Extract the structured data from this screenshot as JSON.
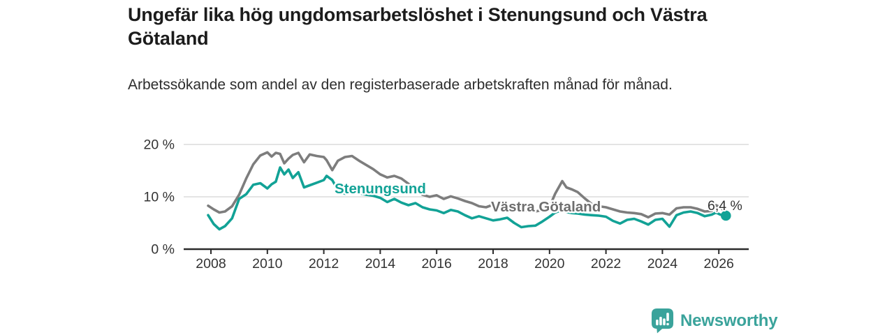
{
  "header": {
    "title": "Ungefär lika hög ungdomsarbetslöshet i Stenungsund och Västra Götaland",
    "subtitle": "Arbetssökande som andel av den registerbaserade arbetskraften månad för månad."
  },
  "chart_data": {
    "type": "line",
    "title": "Ungefär lika hög ungdomsarbetslöshet i Stenungsund och Västra Götaland",
    "subtitle": "Arbetssökande som andel av den registerbaserade arbetskraften månad för månad.",
    "unit": "%",
    "grid": "horizontal",
    "legend": "inline-labels",
    "ylim": [
      0,
      21
    ],
    "y_ticks": [
      {
        "value": 0,
        "label": "0 %"
      },
      {
        "value": 10,
        "label": "10 %"
      },
      {
        "value": 20,
        "label": "20 %"
      }
    ],
    "x_ticks": [
      "2008",
      "2010",
      "2012",
      "2014",
      "2016",
      "2018",
      "2020",
      "2022",
      "2024",
      "2026"
    ],
    "x": [
      2007.9,
      2008.1,
      2008.3,
      2008.5,
      2008.75,
      2009.0,
      2009.25,
      2009.5,
      2009.75,
      2010.0,
      2010.15,
      2010.3,
      2010.45,
      2010.6,
      2010.75,
      2010.9,
      2011.1,
      2011.3,
      2011.5,
      2011.75,
      2012.0,
      2012.1,
      2012.3,
      2012.5,
      2012.75,
      2013.0,
      2013.25,
      2013.5,
      2013.75,
      2014.0,
      2014.25,
      2014.5,
      2014.75,
      2015.0,
      2015.25,
      2015.5,
      2015.75,
      2016.0,
      2016.25,
      2016.5,
      2016.75,
      2017.0,
      2017.25,
      2017.5,
      2017.75,
      2018.0,
      2018.25,
      2018.5,
      2018.75,
      2019.0,
      2019.25,
      2019.5,
      2019.75,
      2020.0,
      2020.2,
      2020.45,
      2020.6,
      2020.8,
      2021.0,
      2021.25,
      2021.5,
      2021.75,
      2022.0,
      2022.25,
      2022.5,
      2022.75,
      2023.0,
      2023.25,
      2023.5,
      2023.75,
      2024.0,
      2024.25,
      2024.5,
      2024.75,
      2025.0,
      2025.25,
      2025.5,
      2025.75,
      2025.9,
      2026.05,
      2026.25
    ],
    "series": [
      {
        "id": "vastra-gotaland",
        "name": "Västra Götaland",
        "color": "#7d7d7d",
        "label_color": "#6e6e6e",
        "values": [
          8.3,
          7.6,
          7.0,
          7.2,
          8.2,
          10.4,
          13.5,
          16.2,
          17.9,
          18.5,
          17.7,
          18.4,
          18.2,
          16.4,
          17.3,
          18.0,
          18.4,
          16.6,
          18.1,
          17.8,
          17.6,
          17.0,
          15.1,
          16.9,
          17.6,
          17.8,
          16.9,
          16.1,
          15.3,
          14.3,
          13.7,
          14.0,
          13.5,
          12.5,
          11.4,
          10.4,
          10.0,
          10.3,
          9.6,
          10.1,
          9.7,
          9.2,
          8.8,
          8.2,
          8.0,
          8.5,
          8.2,
          7.9,
          7.6,
          7.3,
          7.4,
          7.2,
          7.5,
          8.1,
          10.6,
          13.0,
          11.8,
          11.4,
          10.9,
          9.7,
          8.6,
          8.2,
          8.0,
          7.6,
          7.2,
          7.0,
          6.9,
          6.7,
          6.1,
          6.8,
          6.9,
          6.6,
          7.8,
          8.0,
          8.0,
          7.7,
          7.2,
          7.3,
          8.4,
          8.0,
          7.1
        ]
      },
      {
        "id": "stenungsund",
        "name": "Stenungsund",
        "color": "#12a296",
        "label_color": "#12a296",
        "values": [
          6.5,
          4.8,
          3.8,
          4.4,
          5.9,
          9.6,
          10.5,
          12.3,
          12.6,
          11.6,
          12.4,
          12.9,
          15.6,
          14.3,
          15.2,
          13.6,
          14.7,
          11.8,
          12.2,
          12.7,
          13.2,
          14.0,
          13.2,
          11.3,
          10.6,
          11.0,
          10.7,
          10.4,
          10.2,
          9.8,
          9.0,
          9.6,
          8.9,
          8.4,
          8.8,
          8.0,
          7.6,
          7.4,
          6.9,
          7.5,
          7.2,
          6.5,
          5.9,
          6.3,
          5.9,
          5.5,
          5.7,
          6.0,
          5.0,
          4.2,
          4.4,
          4.5,
          5.3,
          6.2,
          7.0,
          7.5,
          7.1,
          6.9,
          6.8,
          6.6,
          6.5,
          6.4,
          6.2,
          5.4,
          4.9,
          5.6,
          5.8,
          5.3,
          4.7,
          5.6,
          5.8,
          4.3,
          6.5,
          7.0,
          7.2,
          6.9,
          6.3,
          6.6,
          7.0,
          6.6,
          6.4
        ]
      }
    ],
    "end_annotation": {
      "series": "stenungsund",
      "label": "6,4 %",
      "value": 6.4,
      "color": "#333333"
    },
    "style": {
      "grid_color": "#dcdcdc",
      "axis_color": "#2b2b2b",
      "axis_text_color": "#333333"
    }
  },
  "footer": {
    "brand": "Newsworthy",
    "brand_color": "#3aa39b",
    "logo_icon": "bar-chart-pin-icon"
  }
}
